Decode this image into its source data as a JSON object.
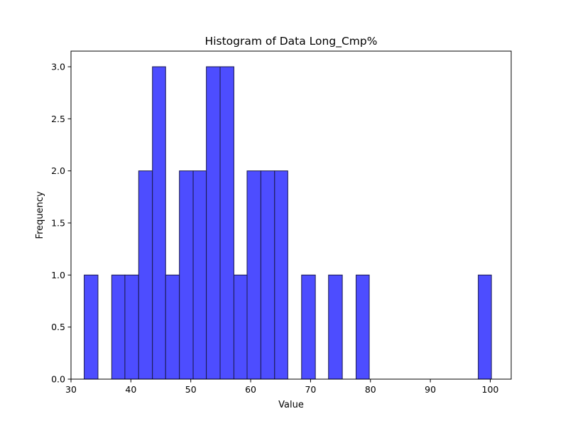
{
  "chart_data": {
    "type": "bar",
    "title": "Histogram of Data Long_Cmp%",
    "xlabel": "Value",
    "ylabel": "Frequency",
    "xlim": [
      30,
      103.5
    ],
    "ylim": [
      0,
      3.15
    ],
    "x_ticks": [
      30,
      40,
      50,
      60,
      70,
      80,
      90,
      100
    ],
    "y_ticks": [
      0.0,
      0.5,
      1.0,
      1.5,
      2.0,
      2.5,
      3.0
    ],
    "bar_color": "#4d4dff",
    "edge_color": "#1a1a4d",
    "grid": false,
    "bins": [
      {
        "start": 32.2,
        "end": 34.5,
        "count": 1
      },
      {
        "start": 34.5,
        "end": 36.8,
        "count": 0
      },
      {
        "start": 36.8,
        "end": 39.0,
        "count": 1
      },
      {
        "start": 39.0,
        "end": 41.3,
        "count": 1
      },
      {
        "start": 41.3,
        "end": 43.6,
        "count": 2
      },
      {
        "start": 43.6,
        "end": 45.8,
        "count": 3
      },
      {
        "start": 45.8,
        "end": 48.1,
        "count": 1
      },
      {
        "start": 48.1,
        "end": 50.4,
        "count": 2
      },
      {
        "start": 50.4,
        "end": 52.6,
        "count": 2
      },
      {
        "start": 52.6,
        "end": 54.9,
        "count": 3
      },
      {
        "start": 54.9,
        "end": 57.2,
        "count": 3
      },
      {
        "start": 57.2,
        "end": 59.4,
        "count": 1
      },
      {
        "start": 59.4,
        "end": 61.7,
        "count": 2
      },
      {
        "start": 61.7,
        "end": 64.0,
        "count": 2
      },
      {
        "start": 64.0,
        "end": 66.2,
        "count": 2
      },
      {
        "start": 66.2,
        "end": 68.5,
        "count": 0
      },
      {
        "start": 68.5,
        "end": 70.8,
        "count": 1
      },
      {
        "start": 70.8,
        "end": 73.0,
        "count": 0
      },
      {
        "start": 73.0,
        "end": 75.3,
        "count": 1
      },
      {
        "start": 75.3,
        "end": 77.6,
        "count": 0
      },
      {
        "start": 77.6,
        "end": 79.8,
        "count": 1
      },
      {
        "start": 79.8,
        "end": 82.1,
        "count": 0
      },
      {
        "start": 82.1,
        "end": 84.4,
        "count": 0
      },
      {
        "start": 84.4,
        "end": 86.6,
        "count": 0
      },
      {
        "start": 86.6,
        "end": 88.9,
        "count": 0
      },
      {
        "start": 88.9,
        "end": 91.2,
        "count": 0
      },
      {
        "start": 91.2,
        "end": 93.4,
        "count": 0
      },
      {
        "start": 93.4,
        "end": 95.7,
        "count": 0
      },
      {
        "start": 95.7,
        "end": 98.0,
        "count": 0
      },
      {
        "start": 98.0,
        "end": 100.2,
        "count": 1
      }
    ]
  }
}
